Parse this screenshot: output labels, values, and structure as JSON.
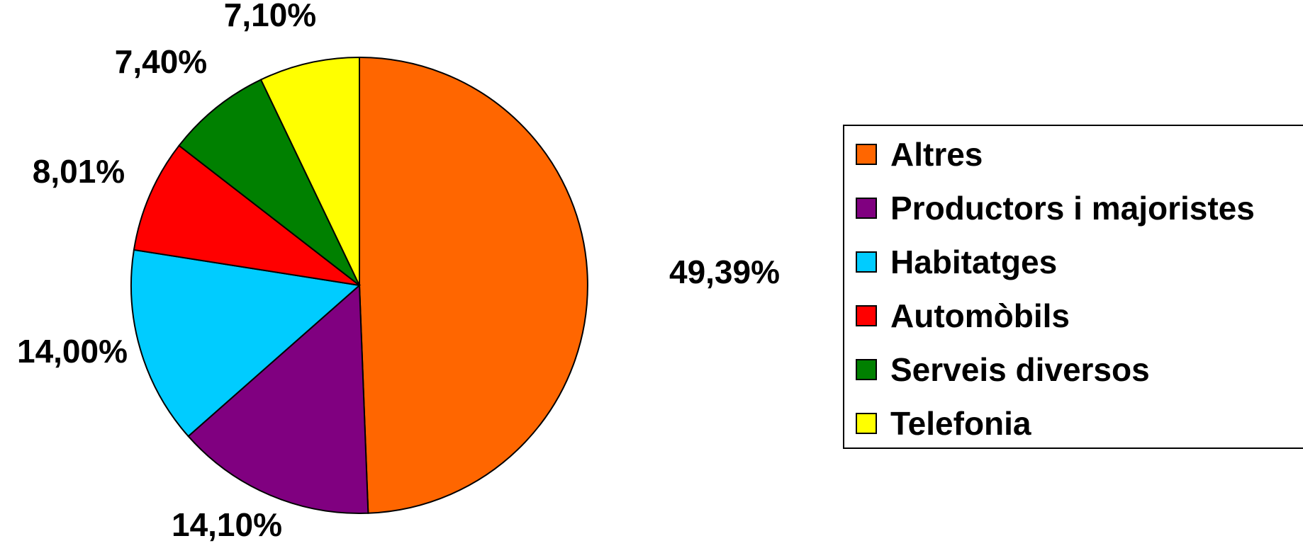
{
  "chart_data": {
    "type": "pie",
    "title": "",
    "legend_position": "right",
    "slices": [
      {
        "label": "Altres",
        "value": 49.39,
        "value_label": "49,39%",
        "color": "#FF6600"
      },
      {
        "label": "Productors i majoristes",
        "value": 14.1,
        "value_label": "14,10%",
        "color": "#800080"
      },
      {
        "label": "Habitatges",
        "value": 14.0,
        "value_label": "14,00%",
        "color": "#00CCFF"
      },
      {
        "label": "Automòbils",
        "value": 8.01,
        "value_label": "8,01%",
        "color": "#FF0000"
      },
      {
        "label": "Serveis diversos",
        "value": 7.4,
        "value_label": "7,40%",
        "color": "#008000"
      },
      {
        "label": "Telefonia",
        "value": 7.1,
        "value_label": "7,10%",
        "color": "#FFFF00"
      }
    ]
  }
}
